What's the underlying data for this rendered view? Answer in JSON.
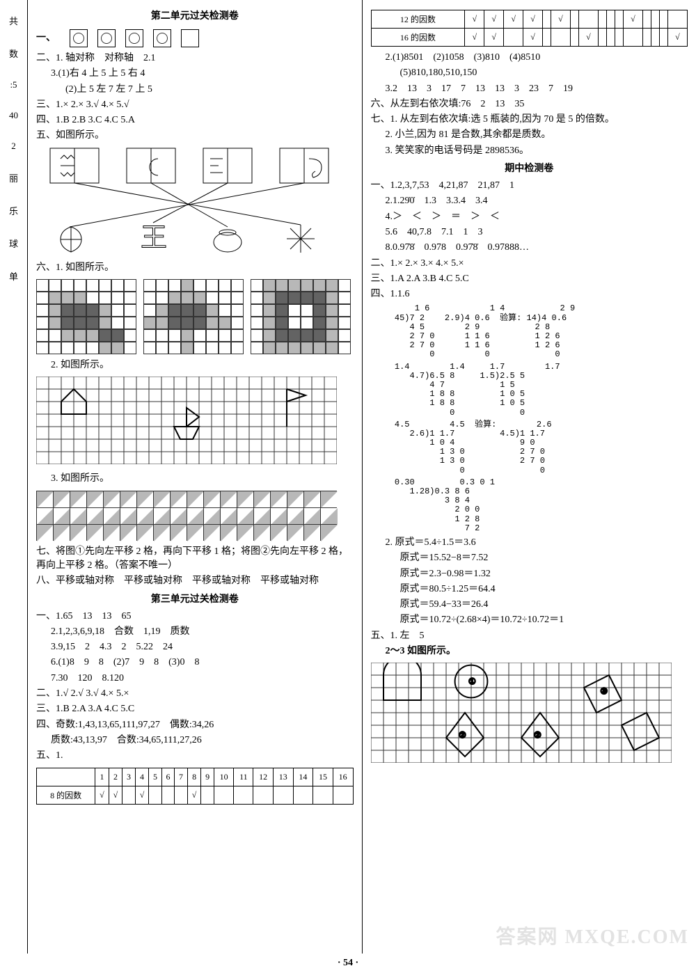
{
  "margin": [
    "共",
    "数",
    ":5",
    "40",
    "2",
    "丽",
    "乐",
    "球",
    "单"
  ],
  "left": {
    "title1": "第二单元过关检测卷",
    "one_label": "一、",
    "circle_boxes": [
      true,
      true,
      true,
      true,
      false
    ],
    "two": {
      "l1": "二、1. 轴对称　对称轴　2.1",
      "l2": "3.(1)右 4 上 5 上 5 右 4",
      "l3": "(2)上 5 左 7 左 7 上 5"
    },
    "three": "三、1.× 2.× 3.√ 4.× 5.√",
    "four": "四、1.B 2.B 3.C 4.C 5.A",
    "five_head": "五、如图所示。",
    "six_head": "六、1. 如图所示。",
    "six_2": "2. 如图所示。",
    "six_3": "3. 如图所示。",
    "seven": "七、将图①先向左平移 2 格，再向下平移 1 格；将图②先向左平移 2 格，再向上平移 2 格。（答案不唯一）",
    "eight": "八、平移或轴对称　平移或轴对称　平移或轴对称　平移或轴对称",
    "title2": "第三单元过关检测卷",
    "u3": {
      "l1": "一、1.65　13　13　65",
      "l2": "2.1,2,3,6,9,18　合数　1,19　质数",
      "l3": "3.9,15　2　4.3　2　5.22　24",
      "l4": "6.(1)8　9　8　(2)7　9　8　(3)0　8",
      "l5": "7.30　120　8.120",
      "er": "二、1.√ 2.√ 3.√ 4.× 5.×",
      "san": "三、1.B 2.A 3.A 4.C 5.C",
      "si": "四、奇数:1,43,13,65,111,97,27　偶数:34,26",
      "si2": "质数:43,13,97　合数:34,65,111,27,26",
      "wu": "五、1."
    },
    "factor_headers": [
      "",
      "1",
      "2",
      "3",
      "4",
      "5",
      "6",
      "7",
      "8",
      "9",
      "10",
      "11",
      "12",
      "13",
      "14",
      "15",
      "16"
    ],
    "factor8_label": "8 的因数",
    "factor8": [
      "√",
      "√",
      "",
      "√",
      "",
      "",
      "",
      "√",
      "",
      "",
      "",
      "",
      "",
      "",
      "",
      ""
    ],
    "grids": {
      "g1": {
        "cols": 8,
        "rows": 6,
        "size": 18,
        "map": "00000000 01110000 01222100 01222100 00111220 00000110"
      },
      "g2": {
        "cols": 8,
        "rows": 6,
        "size": 18,
        "map": "00010000 00111000 01222100 11222110 00010000 00010000"
      },
      "g3": {
        "cols": 8,
        "rows": 6,
        "size": 18,
        "map": "01111110 01222210 01200210 01200210 01222210 01111110"
      },
      "wide": {
        "cols": 24,
        "rows": 7,
        "size": 18
      }
    }
  },
  "right": {
    "factor12_label": "12 的因数",
    "factor12": [
      "√",
      "√",
      "√",
      "√",
      "",
      "√",
      "",
      "",
      "",
      "",
      "",
      "√",
      "",
      "",
      "",
      ""
    ],
    "factor16_label": "16 的因数",
    "factor16": [
      "√",
      "√",
      "",
      "√",
      "",
      "",
      "",
      "√",
      "",
      "",
      "",
      "",
      "",
      "",
      "",
      "√"
    ],
    "l_2": "2.(1)8501　(2)1058　(3)810　(4)8510",
    "l_2b": "(5)810,180,510,150",
    "l_3": "3.2　13　3　17　7　13　13　3　23　7　19",
    "six": "六、从左到右依次填:76　2　13　35",
    "seven1": "七、1. 从左到右依次填:选 5 瓶装的,因为 70 是 5 的倍数。",
    "seven2": "2. 小兰,因为 81 是合数,其余都是质数。",
    "seven3": "3. 笑笑家的电话号码是 2898536。",
    "mid_title": "期中检测卷",
    "mid": {
      "l1": "一、1.2,3,7,53　4,21,87　21,87　1",
      "l2": "2.1.29̇0̇　1.3　3.3.4　3.4",
      "l3": "4.＞　＜　＞　＝　＞　＜",
      "l4": "5.6　40,7.8　7.1　1　3",
      "l5": "8.0.97̇8̇　0.978　0.97̇8̇　0.97888…",
      "er": "二、1.× 2.× 3.× 4.× 5.×",
      "san": "三、1.A 2.A 3.B 4.C 5.C",
      "si_head": "四、1.1.6",
      "div1": "      1 6            1 4           2 9\n  45)7 2    2.9)4 0.6  验算: 14)4 0.6\n     4 5        2 9           2 8\n     2 7 0      1 1 6         1 2 6\n     2 7 0      1 1 6         1 2 6\n         0          0             0",
      "div2": "  1.4        1.4     1.7        1.7\n     4.7)6.5 8     1.5)2.5 5\n         4 7           1 5\n         1 8 8         1 0 5\n         1 8 8         1 0 5\n             0             0",
      "div3": "  4.5        4.5  验算:        2.6\n     2.6)1 1.7         4.5)1 1.7\n         1 0 4             9 0\n           1 3 0           2 7 0\n           1 3 0           2 7 0\n               0               0",
      "div4": "  0.30         0.3 0 1\n     1.28)0.3 8 6\n            3 8 4\n              2 0 0\n              1 2 8\n                7 2",
      "eq2_head": "2. 原式＝5.4÷1.5＝3.6",
      "eq2_b": "原式＝15.52−8＝7.52",
      "eq2_c": "原式＝2.3−0.98＝1.32",
      "eq2_d": "原式＝80.5÷1.25＝64.4",
      "eq2_e": "原式＝59.4−33＝26.4",
      "eq2_f": "原式＝10.72÷(2.68×4)＝10.72÷10.72＝1",
      "wu": "五、1. 左　5",
      "wu2": "2～3 如图所示。"
    },
    "bottom_grid": {
      "cols": 24,
      "rows": 8,
      "size": 18
    }
  },
  "page_number": "54",
  "watermark": "答案网 MXQE.COM",
  "colors": {
    "border": "#000000",
    "grid_line": "#333333",
    "fill_light": "#b8b8b8",
    "fill_dark": "#636363",
    "bg": "#ffffff"
  }
}
